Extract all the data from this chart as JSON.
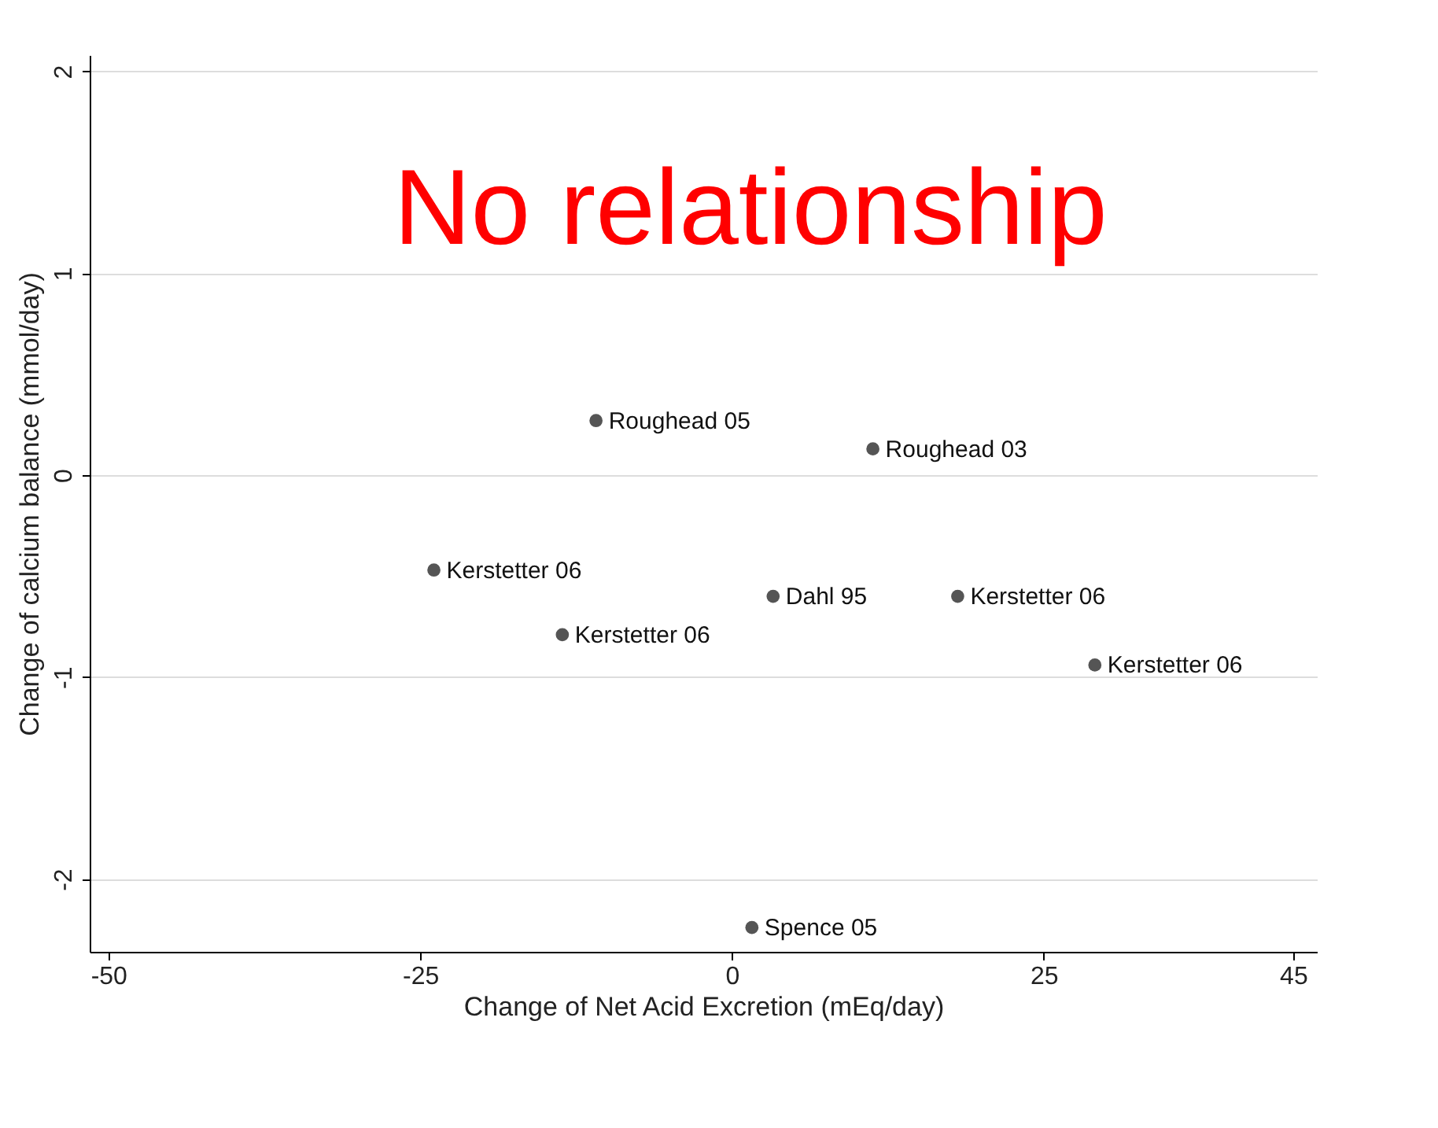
{
  "chart_data": {
    "type": "scatter",
    "xlabel": "Change of Net Acid Excretion (mEq/day)",
    "ylabel": "Change of calcium balance (mmol/day)",
    "x": [
      -10.9,
      11.3,
      -23.9,
      3.3,
      18.1,
      -13.6,
      29.1,
      1.6
    ],
    "series": [
      {
        "color": "#555555",
        "values": [
          0.27,
          0.13,
          -0.47,
          -0.6,
          -0.6,
          -0.79,
          -0.94,
          -2.24
        ]
      }
    ],
    "xlim": [
      -51.5,
      46.9
    ],
    "ylim": [
      -2.36,
      2.08
    ],
    "xticks": [
      -50,
      -25,
      0,
      25,
      45
    ],
    "yticks": [
      -2,
      -1,
      0,
      1,
      2
    ],
    "grid": "y",
    "marker": "circle",
    "annotations": [
      "No relationship",
      {
        "text": "Roughead 05",
        "x": -10.9,
        "y": 0.27
      },
      {
        "text": "Roughead 03",
        "x": 11.3,
        "y": 0.13
      },
      {
        "text": "Kerstetter 06",
        "x": -23.9,
        "y": -0.47
      },
      {
        "text": "Dahl 95",
        "x": 3.3,
        "y": -0.6
      },
      {
        "text": "Kerstetter 06",
        "x": 18.1,
        "y": -0.6
      },
      {
        "text": "Kerstetter 06",
        "x": -13.6,
        "y": -0.79
      },
      {
        "text": "Kerstetter 06",
        "x": 29.1,
        "y": -0.94
      },
      {
        "text": "Spence 05",
        "x": 1.6,
        "y": -2.24
      }
    ]
  }
}
